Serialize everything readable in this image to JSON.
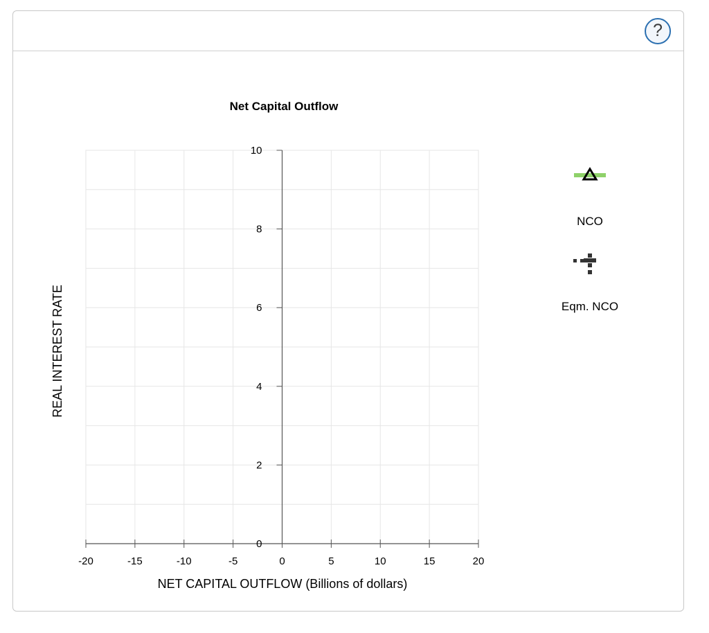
{
  "help_button": {
    "label": "?"
  },
  "chart_data": {
    "type": "line",
    "title": "Net Capital Outflow",
    "xlabel": "NET CAPITAL OUTFLOW (Billions of dollars)",
    "ylabel": "REAL INTEREST RATE",
    "xlim": [
      -20,
      20
    ],
    "ylim": [
      0,
      10
    ],
    "x_ticks": [
      -20,
      -15,
      -10,
      -5,
      0,
      5,
      10,
      15,
      20
    ],
    "y_ticks": [
      0,
      2,
      4,
      6,
      8,
      10
    ],
    "x_minor_grid": [
      -20,
      -15,
      -10,
      -5,
      0,
      5,
      10,
      15,
      20
    ],
    "y_minor_grid": [
      0,
      1,
      2,
      3,
      4,
      5,
      6,
      7,
      8,
      9,
      10
    ],
    "grid": true,
    "series": [],
    "legend_position": "right",
    "legend": [
      {
        "name": "NCO",
        "icon": "green-line-triangle-icon",
        "line_color": "#8fd16a",
        "marker_color": "#000000"
      },
      {
        "name": "Eqm. NCO",
        "icon": "dotted-cross-icon",
        "color": "#333333"
      }
    ]
  }
}
